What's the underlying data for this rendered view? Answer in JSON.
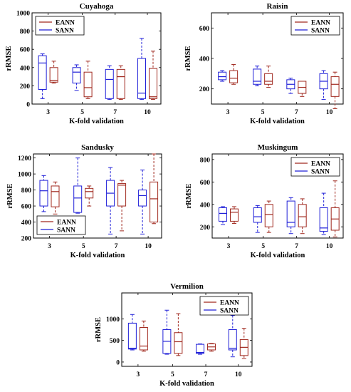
{
  "chart_data": [
    {
      "type": "box",
      "title": "Cuyahoga",
      "xlabel": "K-fold validation",
      "ylabel": "rRMSE",
      "categories": [
        "3",
        "5",
        "7",
        "10"
      ],
      "ylim": [
        0,
        1000
      ],
      "yticks": [
        0,
        200,
        400,
        600,
        800,
        1000
      ],
      "legend": [
        "EANN",
        "SANN"
      ],
      "legend_position": "top-left",
      "series": [
        {
          "name": "SANN",
          "color": "#1f1fd8",
          "boxes": [
            {
              "min": 60,
              "q1": 160,
              "median": 450,
              "q3": 530,
              "max": 550
            },
            {
              "min": 150,
              "q1": 230,
              "median": 350,
              "q3": 400,
              "max": 430
            },
            {
              "min": 50,
              "q1": 60,
              "median": 270,
              "q3": 380,
              "max": 420
            },
            {
              "min": 50,
              "q1": 60,
              "median": 120,
              "q3": 500,
              "max": 720
            }
          ]
        },
        {
          "name": "EANN",
          "color": "#a0281e",
          "boxes": [
            {
              "min": 230,
              "q1": 240,
              "median": 260,
              "q3": 400,
              "max": 470
            },
            {
              "min": 60,
              "q1": 80,
              "median": 180,
              "q3": 350,
              "max": 470
            },
            {
              "min": 50,
              "q1": 60,
              "median": 300,
              "q3": 380,
              "max": 420
            },
            {
              "min": 50,
              "q1": 60,
              "median": 80,
              "q3": 390,
              "max": 580
            }
          ]
        }
      ]
    },
    {
      "type": "box",
      "title": "Raisin",
      "xlabel": "K-fold validation",
      "ylabel": "rRMSE",
      "categories": [
        "3",
        "5",
        "7",
        "10"
      ],
      "ylim": [
        100,
        700
      ],
      "yticks": [
        200,
        400,
        600
      ],
      "legend": [
        "EANN",
        "SANN"
      ],
      "legend_position": "top-right",
      "series": [
        {
          "name": "SANN",
          "color": "#1f1fd8",
          "boxes": [
            {
              "min": 250,
              "q1": 260,
              "median": 280,
              "q3": 310,
              "max": 320
            },
            {
              "min": 220,
              "q1": 230,
              "median": 250,
              "q3": 330,
              "max": 350
            },
            {
              "min": 170,
              "q1": 200,
              "median": 230,
              "q3": 260,
              "max": 270
            },
            {
              "min": 130,
              "q1": 200,
              "median": 250,
              "q3": 300,
              "max": 320
            }
          ]
        },
        {
          "name": "EANN",
          "color": "#a0281e",
          "boxes": [
            {
              "min": 230,
              "q1": 240,
              "median": 270,
              "q3": 320,
              "max": 360
            },
            {
              "min": 210,
              "q1": 230,
              "median": 250,
              "q3": 300,
              "max": 350
            },
            {
              "min": 150,
              "q1": 170,
              "median": 210,
              "q3": 250,
              "max": 250
            },
            {
              "min": 70,
              "q1": 150,
              "median": 230,
              "q3": 280,
              "max": 310
            }
          ]
        }
      ]
    },
    {
      "type": "box",
      "title": "Sandusky",
      "xlabel": "K-fold validation",
      "ylabel": "rRMSE",
      "categories": [
        "3",
        "5",
        "7",
        "10"
      ],
      "ylim": [
        200,
        1250
      ],
      "yticks": [
        200,
        400,
        600,
        800,
        1000,
        1200
      ],
      "legend": [
        "EANN",
        "SANN"
      ],
      "legend_position": "bottom-left",
      "series": [
        {
          "name": "SANN",
          "color": "#1f1fd8",
          "boxes": [
            {
              "min": 530,
              "q1": 600,
              "median": 790,
              "q3": 920,
              "max": 980
            },
            {
              "min": 510,
              "q1": 520,
              "median": 700,
              "q3": 850,
              "max": 1200
            },
            {
              "min": 250,
              "q1": 600,
              "median": 760,
              "q3": 920,
              "max": 1080
            },
            {
              "min": 250,
              "q1": 600,
              "median": 730,
              "q3": 800,
              "max": 1050
            }
          ]
        },
        {
          "name": "EANN",
          "color": "#a0281e",
          "boxes": [
            {
              "min": 500,
              "q1": 590,
              "median": 780,
              "q3": 850,
              "max": 900
            },
            {
              "min": 600,
              "q1": 700,
              "median": 780,
              "q3": 820,
              "max": 850
            },
            {
              "min": 290,
              "q1": 600,
              "median": 860,
              "q3": 880,
              "max": 920
            },
            {
              "min": 380,
              "q1": 400,
              "median": 690,
              "q3": 900,
              "max": 1250
            }
          ]
        }
      ]
    },
    {
      "type": "box",
      "title": "Muskingum",
      "xlabel": "K-fold validation",
      "ylabel": "rRMSE",
      "categories": [
        "3",
        "5",
        "7",
        "10"
      ],
      "ylim": [
        100,
        850
      ],
      "yticks": [
        200,
        400,
        600,
        800
      ],
      "legend": [
        "EANN",
        "SANN"
      ],
      "legend_position": "top-right",
      "series": [
        {
          "name": "SANN",
          "color": "#1f1fd8",
          "boxes": [
            {
              "min": 220,
              "q1": 250,
              "median": 320,
              "q3": 370,
              "max": 380
            },
            {
              "min": 150,
              "q1": 240,
              "median": 290,
              "q3": 370,
              "max": 390
            },
            {
              "min": 140,
              "q1": 200,
              "median": 240,
              "q3": 430,
              "max": 460
            },
            {
              "min": 130,
              "q1": 160,
              "median": 190,
              "q3": 370,
              "max": 500
            }
          ]
        },
        {
          "name": "EANN",
          "color": "#a0281e",
          "boxes": [
            {
              "min": 230,
              "q1": 250,
              "median": 330,
              "q3": 360,
              "max": 380
            },
            {
              "min": 150,
              "q1": 200,
              "median": 310,
              "q3": 400,
              "max": 430
            },
            {
              "min": 140,
              "q1": 200,
              "median": 290,
              "q3": 400,
              "max": 450
            },
            {
              "min": 110,
              "q1": 170,
              "median": 270,
              "q3": 370,
              "max": 610
            }
          ]
        }
      ]
    },
    {
      "type": "box",
      "title": "Vermilion",
      "xlabel": "K-fold validation",
      "ylabel": "rRMSE",
      "categories": [
        "3",
        "5",
        "7",
        "10"
      ],
      "ylim": [
        -100,
        1600
      ],
      "yticks": [
        0,
        500,
        1000
      ],
      "legend": [
        "EANN",
        "SANN"
      ],
      "legend_position": "top-right",
      "series": [
        {
          "name": "SANN",
          "color": "#1f1fd8",
          "boxes": [
            {
              "min": 280,
              "q1": 300,
              "median": 320,
              "q3": 900,
              "max": 1100
            },
            {
              "min": 180,
              "q1": 200,
              "median": 480,
              "q3": 750,
              "max": 1200
            },
            {
              "min": 180,
              "q1": 200,
              "median": 220,
              "q3": 410,
              "max": 420
            },
            {
              "min": 120,
              "q1": 280,
              "median": 320,
              "q3": 750,
              "max": 1080
            }
          ]
        },
        {
          "name": "EANN",
          "color": "#a0281e",
          "boxes": [
            {
              "min": 250,
              "q1": 280,
              "median": 370,
              "q3": 800,
              "max": 950
            },
            {
              "min": 150,
              "q1": 200,
              "median": 470,
              "q3": 680,
              "max": 1120
            },
            {
              "min": 250,
              "q1": 280,
              "median": 350,
              "q3": 420,
              "max": 430
            },
            {
              "min": 80,
              "q1": 150,
              "median": 340,
              "q3": 520,
              "max": 780
            }
          ]
        }
      ]
    }
  ]
}
